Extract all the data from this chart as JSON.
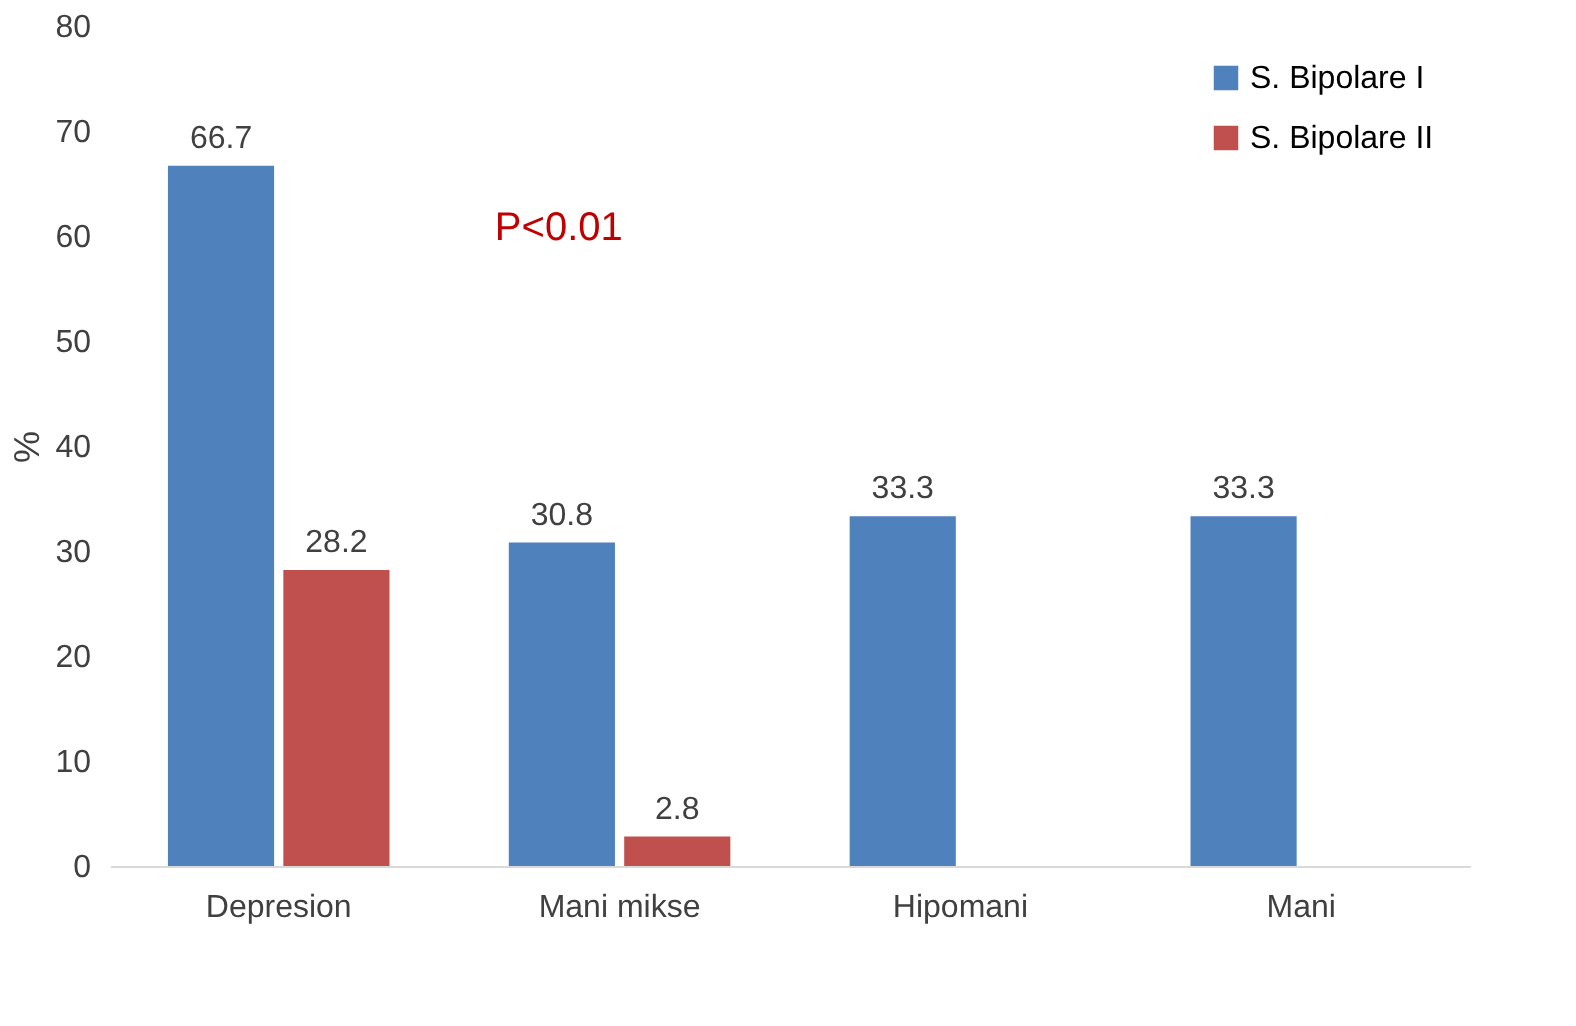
{
  "chart_data": {
    "type": "bar",
    "ylabel": "%",
    "categories": [
      "Depresion",
      "Mani mikse",
      "Hipomani",
      "Mani"
    ],
    "series": [
      {
        "name": "S. Bipolare I",
        "color": "#4f81bd",
        "values": [
          66.7,
          30.8,
          33.3,
          33.3
        ]
      },
      {
        "name": "S. Bipolare II",
        "color": "#c0504d",
        "values": [
          28.2,
          2.8,
          null,
          null
        ]
      }
    ],
    "ylim": [
      0,
      80
    ],
    "yticks": [
      0,
      10,
      20,
      30,
      40,
      50,
      60,
      70,
      80
    ],
    "grid": false,
    "legend": "top right",
    "data_labels": true,
    "annotations": [
      "P<0.01"
    ]
  }
}
